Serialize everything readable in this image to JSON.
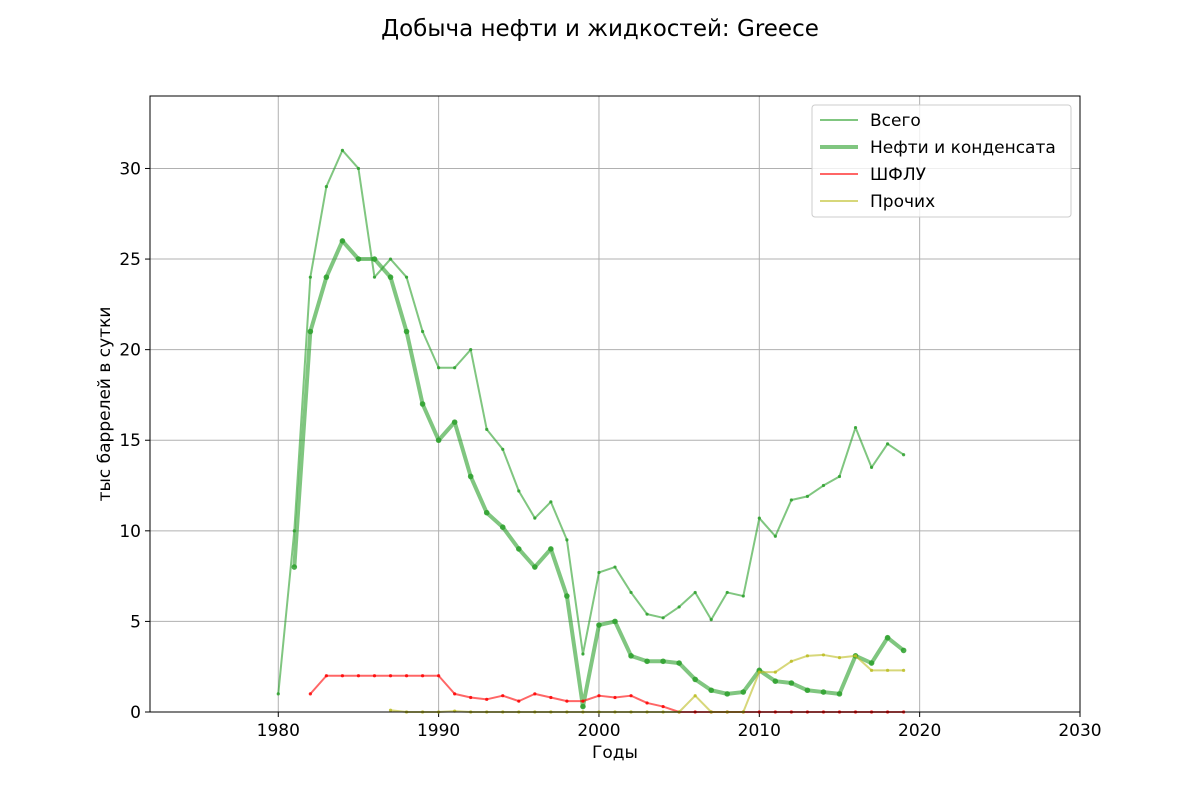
{
  "chart_data": {
    "type": "line",
    "title": "Добыча нефти и жидкостей: Greece",
    "xlabel": "Годы",
    "ylabel": "тыс баррелей в сутки",
    "xlim": [
      1972,
      2030
    ],
    "ylim": [
      0,
      34
    ],
    "xticks": [
      1980,
      1990,
      2000,
      2010,
      2020,
      2030
    ],
    "yticks": [
      0,
      5,
      10,
      15,
      20,
      25,
      30
    ],
    "grid": true,
    "legend_position": "top-right",
    "series": [
      {
        "name": "Всего",
        "color": "#2ca02c",
        "x": [
          1980,
          1981,
          1982,
          1983,
          1984,
          1985,
          1986,
          1987,
          1988,
          1989,
          1990,
          1991,
          1992,
          1993,
          1994,
          1995,
          1996,
          1997,
          1998,
          1999,
          2000,
          2001,
          2002,
          2003,
          2004,
          2005,
          2006,
          2007,
          2008,
          2009,
          2010,
          2011,
          2012,
          2013,
          2014,
          2015,
          2016,
          2017,
          2018,
          2019
        ],
        "y": [
          1,
          10,
          24,
          29,
          31,
          30,
          24,
          25,
          24,
          21,
          19,
          19,
          20,
          15.6,
          14.5,
          12.2,
          10.7,
          11.6,
          9.5,
          3.2,
          7.7,
          8,
          6.6,
          5.4,
          5.2,
          5.8,
          6.6,
          5.1,
          6.6,
          6.4,
          10.7,
          9.7,
          11.7,
          11.9,
          12.5,
          13,
          15.7,
          13.5,
          14.8,
          14.2
        ]
      },
      {
        "name": "Нефти и конденсата",
        "color": "#2ca02c",
        "x": [
          1981,
          1982,
          1983,
          1984,
          1985,
          1986,
          1987,
          1988,
          1989,
          1990,
          1991,
          1992,
          1993,
          1994,
          1995,
          1996,
          1997,
          1998,
          1999,
          2000,
          2001,
          2002,
          2003,
          2004,
          2005,
          2006,
          2007,
          2008,
          2009,
          2010,
          2011,
          2012,
          2013,
          2014,
          2015,
          2016,
          2017,
          2018,
          2019
        ],
        "y": [
          8,
          21,
          24,
          26,
          25,
          25,
          24,
          21,
          17,
          15,
          16,
          13,
          11,
          10.2,
          9,
          8,
          9,
          6.4,
          0.3,
          4.8,
          5,
          3.1,
          2.8,
          2.8,
          2.7,
          1.8,
          1.2,
          1,
          1.1,
          2.3,
          1.7,
          1.6,
          1.2,
          1.1,
          1,
          3.1,
          2.7,
          4.1,
          3.4
        ]
      },
      {
        "name": "ШФЛУ",
        "color": "#ff0000",
        "x": [
          1982,
          1983,
          1984,
          1985,
          1986,
          1987,
          1988,
          1989,
          1990,
          1991,
          1992,
          1993,
          1994,
          1995,
          1996,
          1997,
          1998,
          1999,
          2000,
          2001,
          2002,
          2003,
          2004,
          2005,
          2006,
          2007,
          2008,
          2009,
          2010,
          2011,
          2012,
          2013,
          2014,
          2015,
          2016,
          2017,
          2018,
          2019
        ],
        "y": [
          1,
          2,
          2,
          2,
          2,
          2,
          2,
          2,
          2,
          1,
          0.8,
          0.7,
          0.9,
          0.6,
          1,
          0.8,
          0.6,
          0.6,
          0.9,
          0.8,
          0.9,
          0.5,
          0.3,
          0,
          0,
          0,
          0,
          0,
          0,
          0,
          0,
          0,
          0,
          0,
          0,
          0,
          0,
          0
        ]
      },
      {
        "name": "Прочих",
        "color": "#bcbd22",
        "x": [
          1987,
          1988,
          1989,
          1990,
          1991,
          1992,
          1993,
          1994,
          1995,
          1996,
          1997,
          1998,
          1999,
          2000,
          2001,
          2002,
          2003,
          2004,
          2005,
          2006,
          2007,
          2008,
          2009,
          2010,
          2011,
          2012,
          2013,
          2014,
          2015,
          2016,
          2017,
          2018,
          2019
        ],
        "y": [
          0.1,
          0,
          0,
          0,
          0.05,
          0,
          0,
          0,
          0,
          0,
          0,
          0,
          0,
          0,
          0,
          0,
          0,
          0,
          0,
          0.9,
          0,
          0,
          0,
          2.2,
          2.2,
          2.8,
          3.1,
          3.15,
          3,
          3.1,
          2.3,
          2.3,
          2.3
        ]
      }
    ]
  }
}
